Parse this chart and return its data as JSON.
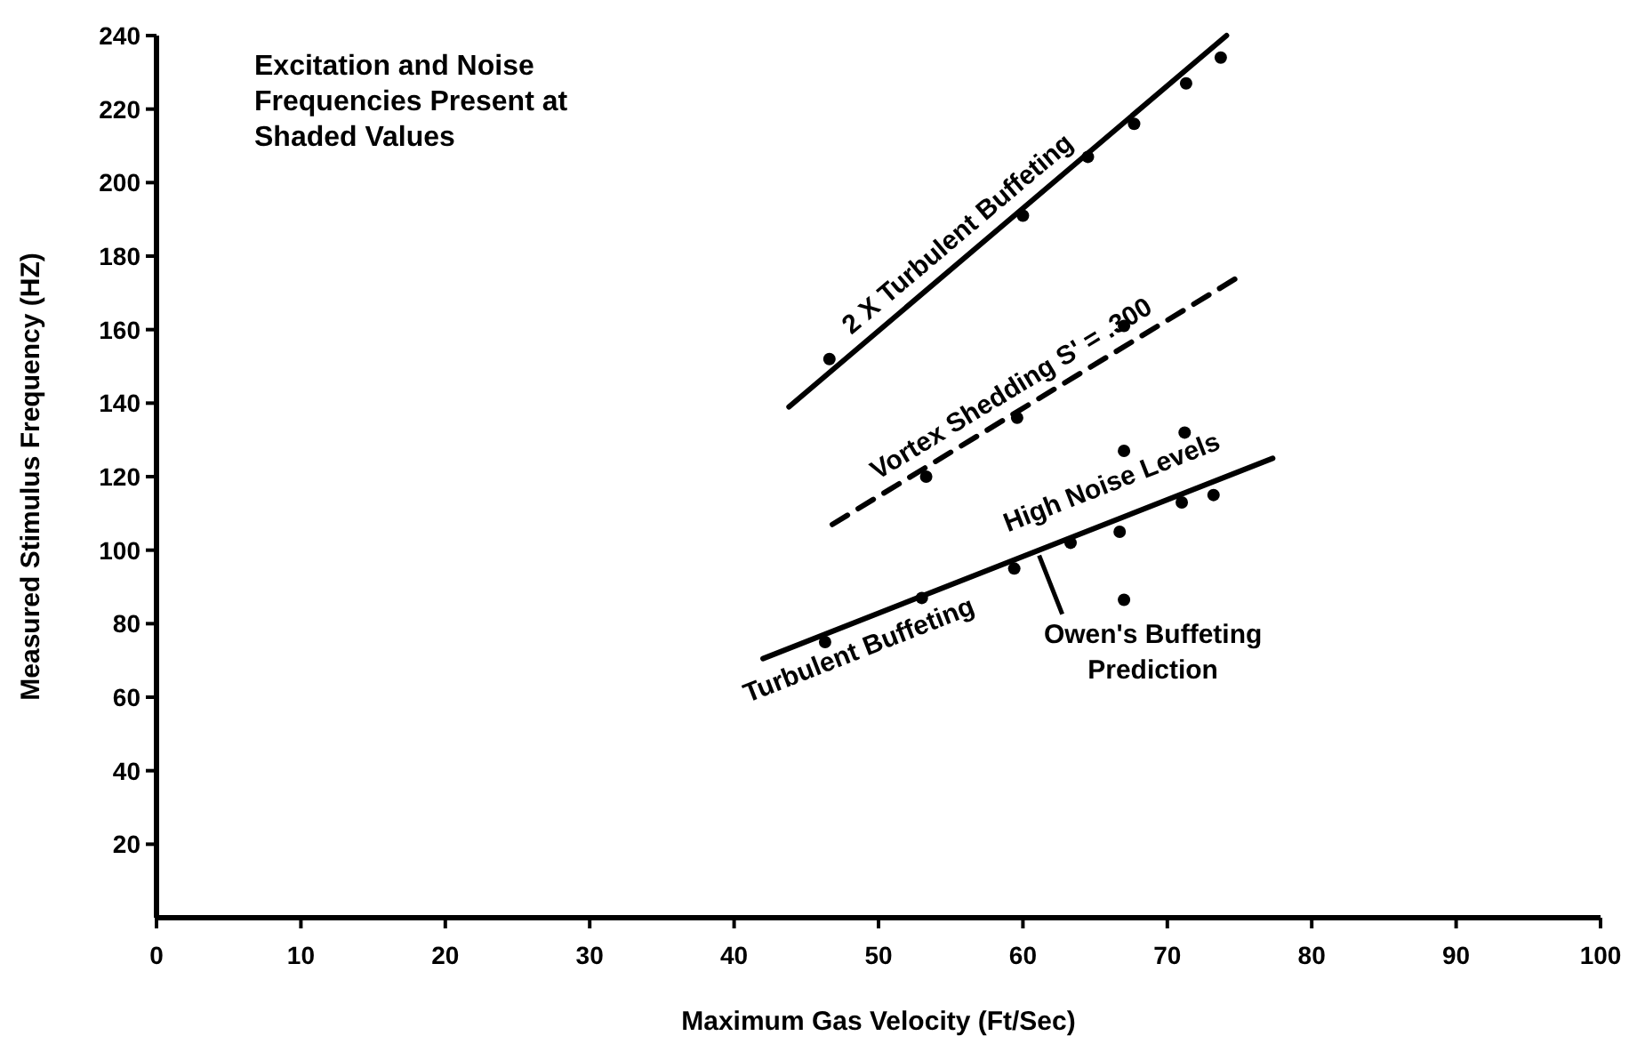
{
  "chart_data": {
    "type": "line",
    "xlabel": "Maximum Gas Velocity (Ft/Sec)",
    "ylabel": "Measured Stimulus Frequency (HZ)",
    "xlim": [
      0,
      100
    ],
    "xticks": [
      0,
      10,
      20,
      30,
      40,
      50,
      60,
      70,
      80,
      90,
      100
    ],
    "ylim": [
      0,
      240
    ],
    "yticks": [
      20,
      40,
      60,
      80,
      100,
      120,
      140,
      160,
      180,
      200,
      220,
      240
    ],
    "grid": false,
    "series": [
      {
        "name": "2 X Turbulent Buffeting",
        "color": "#000000",
        "line_style": "solid",
        "x": [
          43.8,
          74.1
        ],
        "values": [
          139,
          240
        ]
      },
      {
        "name": "Vortex Shedding S' = .300",
        "color": "#000000",
        "line_style": "dashed",
        "x": [
          46.8,
          75.2
        ],
        "values": [
          107,
          175
        ]
      },
      {
        "name": "Turbulent Buffeting",
        "color": "#000000",
        "line_style": "solid",
        "x": [
          42,
          77.3
        ],
        "values": [
          70.5,
          125
        ]
      },
      {
        "type": "scatter",
        "color": "#000000",
        "marker": "circle",
        "x": [
          46.6,
          60,
          64.5,
          67.7,
          71.3,
          73.7,
          53.3,
          59.6,
          67,
          46.3,
          53,
          59.4,
          63.3,
          66.7,
          71,
          73.2,
          67,
          71.2,
          67
        ],
        "values": [
          152,
          191,
          207,
          216,
          227,
          234,
          120,
          136,
          161,
          75,
          87,
          95,
          102,
          105,
          113,
          115,
          127,
          132,
          86.5
        ]
      }
    ],
    "annotations": [
      "Excitation and Noise Frequencies Present at Shaded Values",
      {
        "text": "High Noise Levels",
        "x": 67,
        "y": 110
      },
      {
        "text": "Owen's Buffeting Prediction",
        "x": 61,
        "y": 100
      }
    ]
  }
}
